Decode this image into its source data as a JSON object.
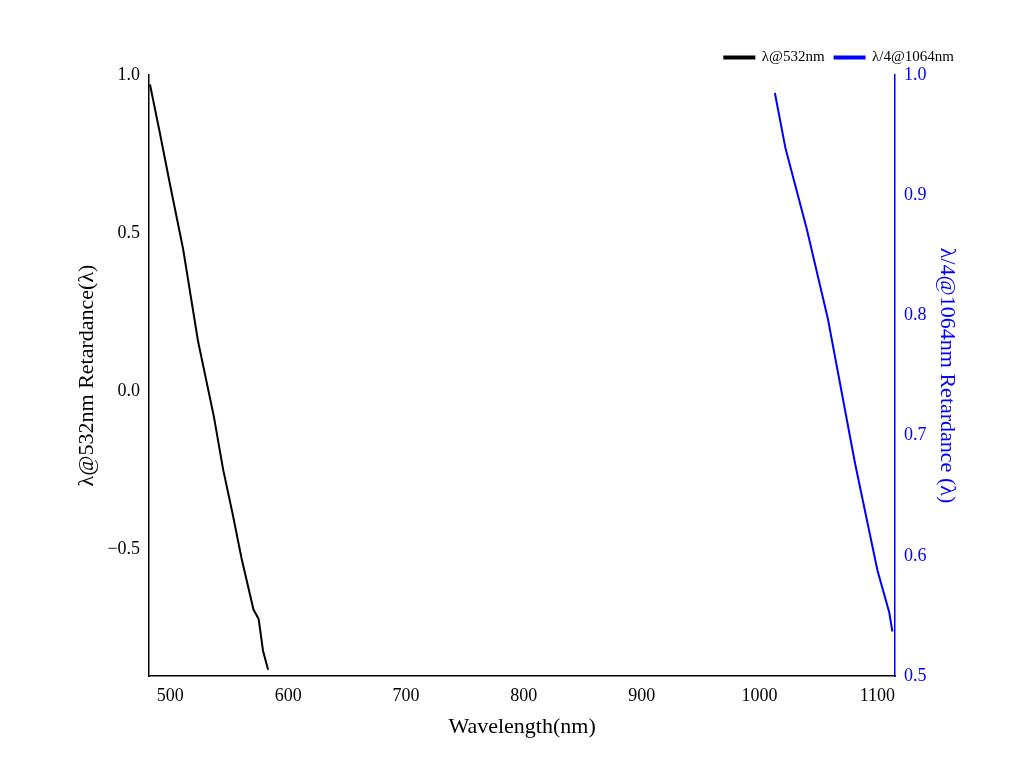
{
  "chart_data": {
    "type": "line",
    "x_label": "Wavelength(nm)",
    "y_label": "λ@532nm Retardance(λ)",
    "y2_label": "λ/4@1064nm Retardance (λ)",
    "xlim": [
      482,
      1115
    ],
    "xticks": [
      500,
      600,
      700,
      800,
      900,
      1000,
      1100
    ],
    "ylim": [
      -0.9,
      1.0
    ],
    "yticks": [
      {
        "value": -0.5,
        "label": "−0.5"
      },
      {
        "value": 0,
        "label": "0.0"
      },
      0.5,
      {
        "value": 1,
        "label": "1.0"
      }
    ],
    "y2lim": [
      0.5,
      1.0
    ],
    "y2ticks": [
      0.5,
      0.6,
      0.7,
      0.8,
      0.9,
      {
        "value": 1,
        "label": "1.0"
      }
    ],
    "grid": false,
    "legend": "upper right",
    "series": [
      {
        "name": "λ@532nm",
        "color": "#000000",
        "axis": "y",
        "x": [
          482.8,
          491,
          500,
          510.9,
          523.5,
          537,
          545,
          552.5,
          560.6,
          570.6,
          575,
          578.7,
          583
        ],
        "values": [
          0.97,
          0.82,
          0.65,
          0.45,
          0.16,
          -0.08,
          -0.25,
          -0.38,
          -0.53,
          -0.69,
          -0.72,
          -0.82,
          -0.88
        ]
      },
      {
        "name": "λ/4@1064nm",
        "color": "#0000ff",
        "axis": "y2",
        "x": [
          1013,
          1022,
          1040,
          1058,
          1081,
          1100,
          1110,
          1112.7
        ],
        "values": [
          0.985,
          0.939,
          0.872,
          0.797,
          0.677,
          0.588,
          0.553,
          0.537
        ]
      }
    ]
  }
}
